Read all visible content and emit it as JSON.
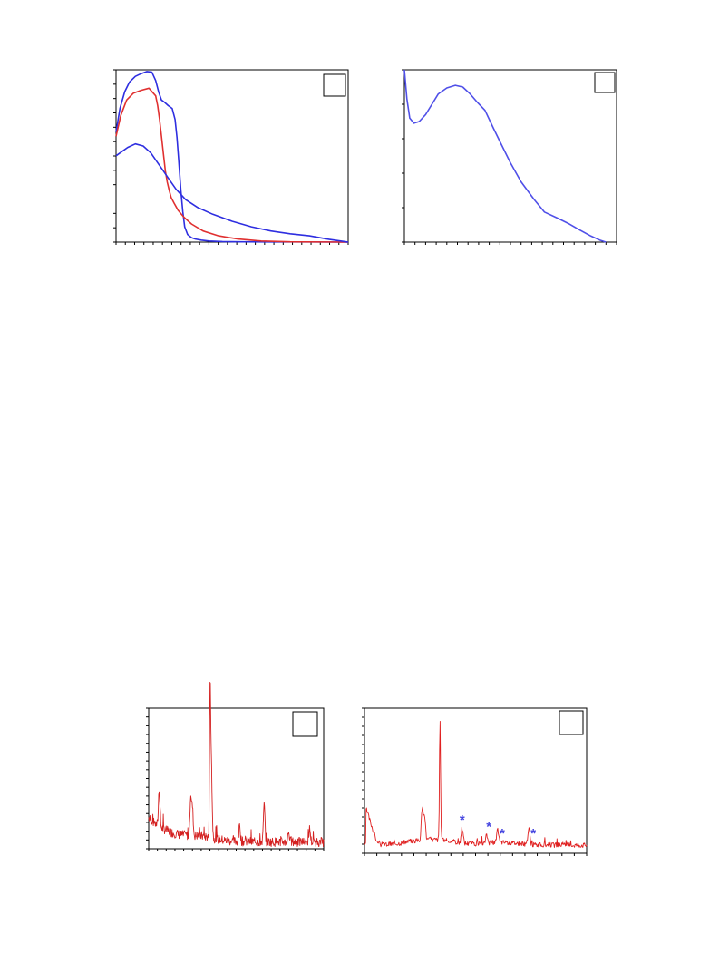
{
  "chart_data": [
    {
      "type": "line",
      "panel_label": "",
      "xlim": [
        0,
        12
      ],
      "ylim": [
        0,
        12
      ],
      "x_ticks": 25,
      "y_ticks": 12,
      "series": [
        {
          "color": "#2e2ee0",
          "x": [
            0,
            0.2,
            0.45,
            0.7,
            1.0,
            1.3,
            1.6,
            1.85,
            2.05,
            2.2,
            2.35,
            2.5,
            2.7,
            2.9,
            3.05,
            3.15,
            3.25,
            3.35,
            3.45,
            3.55,
            3.7,
            3.9,
            4.1,
            4.4,
            4.8,
            5.5,
            6.5,
            8,
            10,
            12
          ],
          "y": [
            7.9,
            9.6,
            10.8,
            11.5,
            11.9,
            12.1,
            12.25,
            12.2,
            11.6,
            10.8,
            10.2,
            10.05,
            9.8,
            9.6,
            8.8,
            7.5,
            5.7,
            3.7,
            2.2,
            1.1,
            0.55,
            0.32,
            0.22,
            0.14,
            0.08,
            0.04,
            0.02,
            0.01,
            0.01,
            0
          ]
        },
        {
          "color": "#e03030",
          "x": [
            0,
            0.25,
            0.55,
            0.9,
            1.3,
            1.7,
            2.05,
            2.15,
            2.25,
            2.35,
            2.45,
            2.55,
            2.65,
            2.75,
            2.85,
            3.0,
            3.2,
            3.5,
            3.9,
            4.5,
            5.3,
            6.3,
            7.5,
            9,
            12
          ],
          "y": [
            7.6,
            9.1,
            10.2,
            10.7,
            10.9,
            11.05,
            10.5,
            9.8,
            8.8,
            7.6,
            6.3,
            5.1,
            4.3,
            3.7,
            3.2,
            2.8,
            2.3,
            1.8,
            1.3,
            0.8,
            0.45,
            0.22,
            0.08,
            0.02,
            0
          ]
        },
        {
          "color": "#2e2ee0",
          "x": [
            0,
            0.3,
            0.6,
            1.0,
            1.4,
            1.8,
            2.1,
            2.4,
            2.7,
            3.1,
            3.6,
            4.2,
            5.0,
            6.0,
            7.0,
            8.0,
            9.0,
            10.0,
            11.0,
            12.0
          ],
          "y": [
            6.2,
            6.5,
            6.8,
            7.05,
            6.9,
            6.4,
            5.8,
            5.2,
            4.6,
            3.8,
            3.05,
            2.5,
            2.0,
            1.5,
            1.1,
            0.8,
            0.6,
            0.45,
            0.2,
            0
          ]
        }
      ]
    },
    {
      "type": "line",
      "panel_label": "",
      "xlim": [
        0,
        10
      ],
      "ylim": [
        0,
        10
      ],
      "x_ticks": 20,
      "y_ticks": 5,
      "series": [
        {
          "color": "#5050e8",
          "x": [
            0,
            0.12,
            0.25,
            0.45,
            0.7,
            1.0,
            1.3,
            1.6,
            2.0,
            2.4,
            2.75,
            3.1,
            3.45,
            3.8,
            4.2,
            4.6,
            5.0,
            5.5,
            6.1,
            6.6,
            7.2,
            7.7,
            8.2,
            8.8,
            9.2,
            9.5
          ],
          "y": [
            10,
            8.3,
            7.2,
            6.9,
            7.0,
            7.4,
            8.0,
            8.6,
            8.95,
            9.1,
            9.0,
            8.6,
            8.1,
            7.65,
            6.6,
            5.6,
            4.6,
            3.5,
            2.5,
            1.75,
            1.4,
            1.1,
            0.75,
            0.35,
            0.12,
            0.0
          ]
        }
      ]
    },
    {
      "type": "line",
      "panel_label": "",
      "xlim": [
        0,
        100
      ],
      "ylim": [
        0,
        100
      ],
      "x_ticks": 20,
      "y_ticks": 16,
      "series": [
        {
          "color": "#d42020",
          "seed": 7,
          "base": "decay",
          "peaks": [
            [
              6,
              28
            ],
            [
              24,
              30
            ],
            [
              25,
              20
            ],
            [
              35,
              88
            ],
            [
              35.5,
              60
            ],
            [
              36,
              22
            ],
            [
              52,
              12
            ],
            [
              66,
              28
            ],
            [
              80,
              8
            ],
            [
              92,
              10
            ]
          ]
        }
      ]
    },
    {
      "type": "line",
      "panel_label": "",
      "xlim": [
        0,
        100
      ],
      "ylim": [
        0,
        100
      ],
      "x_ticks": 18,
      "y_ticks": 16,
      "series": [
        {
          "color": "#e02020",
          "seed": 3,
          "base": "bump",
          "peaks": [
            [
              26,
              22
            ],
            [
              27,
              18
            ],
            [
              34,
              88
            ],
            [
              44,
              10
            ],
            [
              55,
              6
            ],
            [
              60,
              9
            ],
            [
              74,
              12
            ]
          ]
        }
      ]
    }
  ],
  "asterisks": [
    {
      "text": "*",
      "x": 44,
      "color": "#4545e0"
    },
    {
      "text": "*",
      "x": 56,
      "color": "#4545e0"
    },
    {
      "text": "*",
      "x": 62,
      "color": "#4545e0"
    },
    {
      "text": "*",
      "x": 76,
      "color": "#4545e0"
    }
  ]
}
